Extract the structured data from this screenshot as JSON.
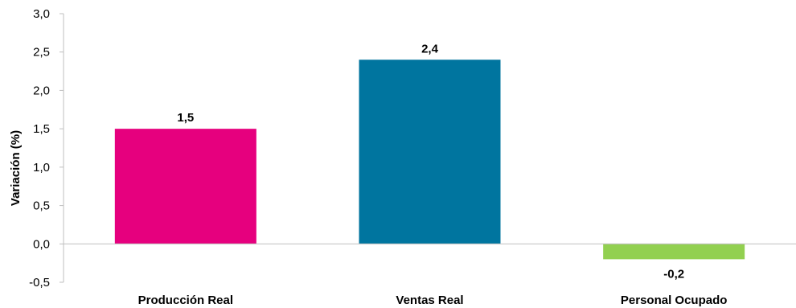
{
  "chart_data": {
    "type": "bar",
    "categories": [
      "Producción Real",
      "Ventas Real",
      "Personal Ocupado"
    ],
    "values": [
      1.5,
      2.4,
      -0.2
    ],
    "data_labels": [
      "1,5",
      "2,4",
      "-0,2"
    ],
    "colors": [
      "#e6007e",
      "#00759f",
      "#92d050"
    ],
    "ylabel": "Variación (%)",
    "xlabel": "",
    "title": "",
    "ylim": [
      -0.5,
      3.0
    ],
    "yticks": [
      -0.5,
      0.0,
      0.5,
      1.0,
      1.5,
      2.0,
      2.5,
      3.0
    ],
    "ytick_labels": [
      "-0,5",
      "0,0",
      "0,5",
      "1,0",
      "1,5",
      "2,0",
      "2,5",
      "3,0"
    ],
    "grid": false,
    "legend": "none",
    "axis_color": "#bfbfbf"
  }
}
